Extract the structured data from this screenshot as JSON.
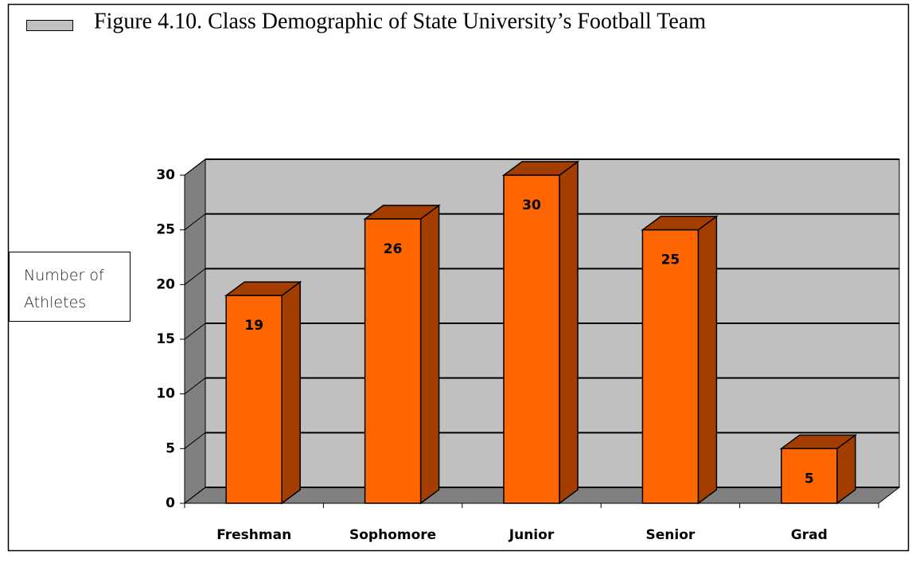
{
  "chart_data": {
    "type": "bar3d",
    "title": "Figure 4.10. Class Demographic of State University’s Football Team",
    "ylabel": "Number of Athletes",
    "categories": [
      "Freshman",
      "Sophomore",
      "Junior",
      "Senior",
      "Grad"
    ],
    "values": [
      19,
      26,
      30,
      25,
      5
    ],
    "color": "#ff6600",
    "side_color": "#a33d00",
    "ylim": [
      0,
      30
    ],
    "yticks": [
      0,
      5,
      10,
      15,
      20,
      25,
      30
    ],
    "grid": true,
    "legend_color": "#c0c0c0"
  }
}
